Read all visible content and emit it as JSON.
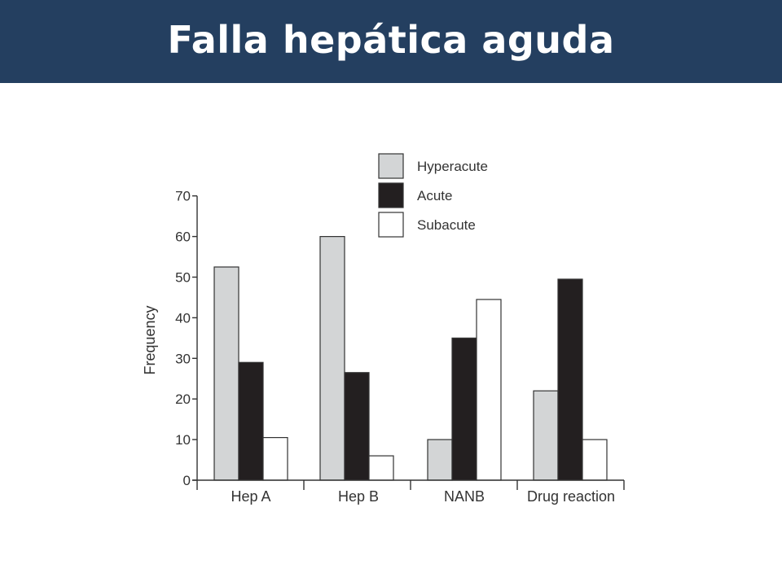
{
  "slide": {
    "title": "Falla hepática aguda"
  },
  "chart_data": {
    "type": "bar",
    "title": "",
    "xlabel": "",
    "ylabel": "Frequency",
    "categories": [
      "Hep A",
      "Hep B",
      "NANB",
      "Drug reaction"
    ],
    "series": [
      {
        "name": "Hyperacute",
        "color": "#d3d5d6",
        "values": [
          52.5,
          60,
          10,
          22
        ]
      },
      {
        "name": "Acute",
        "color": "#231f20",
        "values": [
          29,
          26.5,
          35,
          49.5
        ]
      },
      {
        "name": "Subacute",
        "color": "#ffffff",
        "values": [
          10.5,
          6,
          44.5,
          10
        ]
      }
    ],
    "ylim": [
      0,
      70
    ],
    "yticks": [
      0,
      10,
      20,
      30,
      40,
      50,
      60,
      70
    ],
    "grid": false,
    "legend_position": "top-right"
  },
  "colors": {
    "title_bar": "#243f60",
    "title_text": "#ffffff",
    "axis": "#333333"
  }
}
